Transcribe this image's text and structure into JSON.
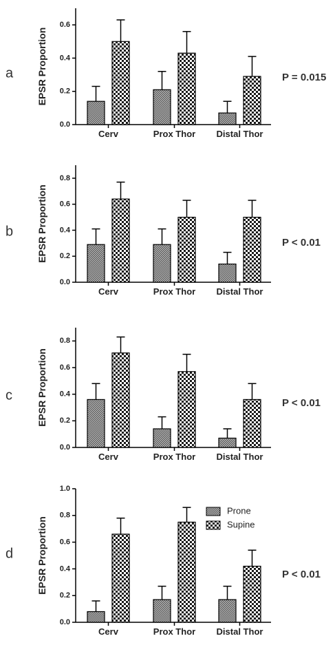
{
  "chart_data": [
    {
      "type": "bar",
      "panel_label": "a",
      "categories": [
        "Cerv",
        "Prox Thor",
        "Distal Thor"
      ],
      "series": [
        {
          "name": "Prone",
          "values": [
            0.14,
            0.21,
            0.07
          ],
          "errors": [
            0.09,
            0.11,
            0.07
          ]
        },
        {
          "name": "Supine",
          "values": [
            0.5,
            0.43,
            0.29
          ],
          "errors": [
            0.13,
            0.13,
            0.12
          ]
        }
      ],
      "ylabel": "EPSR Proportion",
      "ylim": [
        0,
        0.7
      ],
      "yticks": [
        0.0,
        0.2,
        0.4,
        0.6
      ],
      "ytick_labels": [
        "0.0",
        "0.2",
        "0.4",
        "0.6"
      ],
      "p_value_text": "P = 0.015",
      "legend": false
    },
    {
      "type": "bar",
      "panel_label": "b",
      "categories": [
        "Cerv",
        "Prox Thor",
        "Distal Thor"
      ],
      "series": [
        {
          "name": "Prone",
          "values": [
            0.29,
            0.29,
            0.14
          ],
          "errors": [
            0.12,
            0.12,
            0.09
          ]
        },
        {
          "name": "Supine",
          "values": [
            0.64,
            0.5,
            0.5
          ],
          "errors": [
            0.13,
            0.13,
            0.13
          ]
        }
      ],
      "ylabel": "EPSR Proportion",
      "ylim": [
        0,
        0.9
      ],
      "yticks": [
        0.0,
        0.2,
        0.4,
        0.6,
        0.8
      ],
      "ytick_labels": [
        "0.0",
        "0.2",
        "0.4",
        "0.6",
        "0.8"
      ],
      "p_value_text": "P < 0.01",
      "legend": false
    },
    {
      "type": "bar",
      "panel_label": "c",
      "categories": [
        "Cerv",
        "Prox Thor",
        "Distal Thor"
      ],
      "series": [
        {
          "name": "Prone",
          "values": [
            0.36,
            0.14,
            0.07
          ],
          "errors": [
            0.12,
            0.09,
            0.07
          ]
        },
        {
          "name": "Supine",
          "values": [
            0.71,
            0.57,
            0.36
          ],
          "errors": [
            0.12,
            0.13,
            0.12
          ]
        }
      ],
      "ylabel": "EPSR Proportion",
      "ylim": [
        0,
        0.9
      ],
      "yticks": [
        0.0,
        0.2,
        0.4,
        0.6,
        0.8
      ],
      "ytick_labels": [
        "0.0",
        "0.2",
        "0.4",
        "0.6",
        "0.8"
      ],
      "p_value_text": "P < 0.01",
      "legend": false
    },
    {
      "type": "bar",
      "panel_label": "d",
      "categories": [
        "Cerv",
        "Prox Thor",
        "Distal Thor"
      ],
      "series": [
        {
          "name": "Prone",
          "values": [
            0.08,
            0.17,
            0.17
          ],
          "errors": [
            0.08,
            0.1,
            0.1
          ]
        },
        {
          "name": "Supine",
          "values": [
            0.66,
            0.75,
            0.42
          ],
          "errors": [
            0.12,
            0.11,
            0.12
          ]
        }
      ],
      "ylabel": "EPSR Proportion",
      "ylim": [
        0,
        1.0
      ],
      "yticks": [
        0.0,
        0.2,
        0.4,
        0.6,
        0.8,
        1.0
      ],
      "ytick_labels": [
        "0.0",
        "0.2",
        "0.4",
        "0.6",
        "0.8",
        "1.0"
      ],
      "p_value_text": "P < 0.01",
      "legend": true,
      "legend_position": "top-right"
    }
  ],
  "style": {
    "axis_color": "#000000",
    "bar_stroke": "#000000",
    "prone_pattern": "fine-crosshatch",
    "supine_pattern": "checkerboard"
  }
}
